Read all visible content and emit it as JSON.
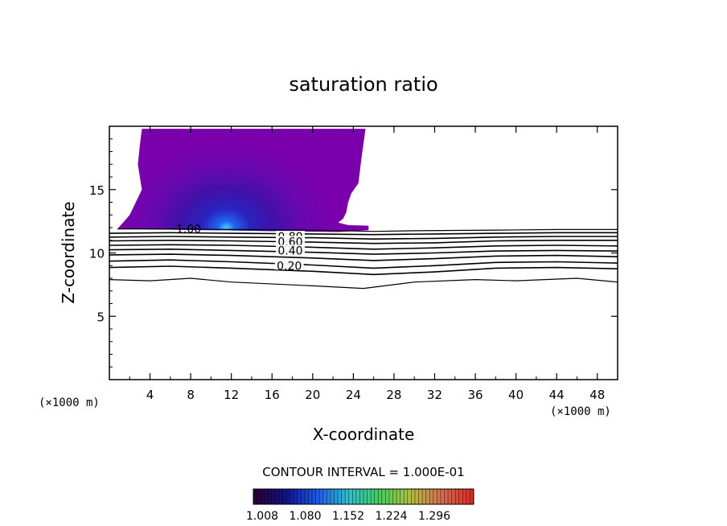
{
  "chart_data": {
    "type": "contour",
    "title": "saturation ratio",
    "xlabel": "X-coordinate",
    "ylabel": "Z-coordinate",
    "x_unit_left": "(×1000 m)",
    "x_unit_right": "(×1000 m)",
    "xlim": [
      0,
      50
    ],
    "ylim": [
      0,
      20
    ],
    "x_ticks": [
      4,
      8,
      12,
      16,
      20,
      24,
      28,
      32,
      36,
      40,
      44,
      48
    ],
    "y_ticks": [
      5,
      10,
      15
    ],
    "contour_interval_text": "CONTOUR INTERVAL = 1.000E-01",
    "contour_labels": [
      {
        "text": "1.00",
        "x": 7.8,
        "z": 11.9
      },
      {
        "text": "0.80",
        "x": 17.8,
        "z": 11.3
      },
      {
        "text": "0.60",
        "x": 17.8,
        "z": 10.9
      },
      {
        "text": "0.40",
        "x": 17.8,
        "z": 10.2
      },
      {
        "text": "0.20",
        "x": 17.7,
        "z": 9.0
      }
    ],
    "contour_lines": [
      {
        "level": 1.0,
        "x": [
          0.8,
          6,
          12,
          20,
          26,
          30,
          38,
          44,
          50
        ],
        "z": [
          11.9,
          11.9,
          11.85,
          11.8,
          11.7,
          11.75,
          11.8,
          11.85,
          11.85
        ]
      },
      {
        "level": 0.9,
        "x": [
          0,
          6,
          12,
          20,
          26,
          32,
          38,
          44,
          50
        ],
        "z": [
          11.55,
          11.6,
          11.55,
          11.5,
          11.45,
          11.5,
          11.55,
          11.6,
          11.6
        ]
      },
      {
        "level": 0.8,
        "x": [
          0,
          6,
          12,
          20,
          26,
          32,
          38,
          44,
          50
        ],
        "z": [
          11.25,
          11.3,
          11.25,
          11.2,
          11.1,
          11.15,
          11.25,
          11.3,
          11.3
        ]
      },
      {
        "level": 0.7,
        "x": [
          0,
          6,
          12,
          20,
          26,
          32,
          38,
          44,
          50
        ],
        "z": [
          10.95,
          11.0,
          10.95,
          10.85,
          10.75,
          10.8,
          10.95,
          11.0,
          11.0
        ]
      },
      {
        "level": 0.6,
        "x": [
          0,
          6,
          12,
          20,
          26,
          32,
          38,
          44,
          50
        ],
        "z": [
          10.6,
          10.65,
          10.6,
          10.45,
          10.3,
          10.4,
          10.55,
          10.6,
          10.55
        ]
      },
      {
        "level": 0.5,
        "x": [
          0,
          6,
          12,
          20,
          26,
          32,
          38,
          44,
          50
        ],
        "z": [
          10.25,
          10.3,
          10.2,
          10.05,
          9.9,
          10.0,
          10.15,
          10.2,
          10.15
        ]
      },
      {
        "level": 0.4,
        "x": [
          0,
          6,
          12,
          20,
          26,
          32,
          38,
          44,
          50
        ],
        "z": [
          9.85,
          9.9,
          9.8,
          9.6,
          9.4,
          9.55,
          9.75,
          9.8,
          9.7
        ]
      },
      {
        "level": 0.3,
        "x": [
          0,
          6,
          12,
          20,
          26,
          32,
          38,
          44,
          50
        ],
        "z": [
          9.35,
          9.45,
          9.3,
          9.05,
          8.8,
          9.0,
          9.25,
          9.3,
          9.2
        ]
      },
      {
        "level": 0.2,
        "x": [
          0,
          6,
          12,
          20,
          26,
          32,
          38,
          44,
          50
        ],
        "z": [
          8.85,
          8.95,
          8.8,
          8.55,
          8.3,
          8.5,
          8.8,
          8.85,
          8.75
        ]
      },
      {
        "level": 0.1,
        "x": [
          0,
          4,
          8,
          12,
          20,
          25,
          30,
          36,
          40,
          46,
          50
        ],
        "z": [
          7.9,
          7.8,
          8.0,
          7.7,
          7.4,
          7.2,
          7.7,
          7.9,
          7.8,
          8.0,
          7.7
        ]
      }
    ],
    "supersaturated_region": {
      "outline_x": [
        0.8,
        2,
        3.2,
        2.8,
        3.0,
        3.2,
        25.2,
        24.8,
        24.5,
        23.8,
        23.5,
        23.3,
        23.0,
        22.5,
        23.5,
        25.5,
        25.5,
        22.5,
        0.8
      ],
      "outline_z": [
        11.9,
        13.0,
        15.0,
        17.0,
        18.5,
        19.8,
        19.8,
        17.5,
        15.5,
        14.7,
        14.0,
        13.2,
        12.7,
        12.4,
        12.2,
        12.15,
        11.8,
        11.65,
        11.9
      ],
      "max_x": 11.5,
      "max_z": 12.0
    },
    "colorbar": {
      "tick_labels": [
        "1.008",
        "1.080",
        "1.152",
        "1.224",
        "1.296"
      ],
      "colors": [
        "#2a0038",
        "#11128a",
        "#1c58e8",
        "#2fbfd0",
        "#3fcf60",
        "#b0c040",
        "#d07050",
        "#e02a28"
      ]
    },
    "colors": {
      "region_base": "#7a00ab",
      "contour": "#000000"
    }
  }
}
